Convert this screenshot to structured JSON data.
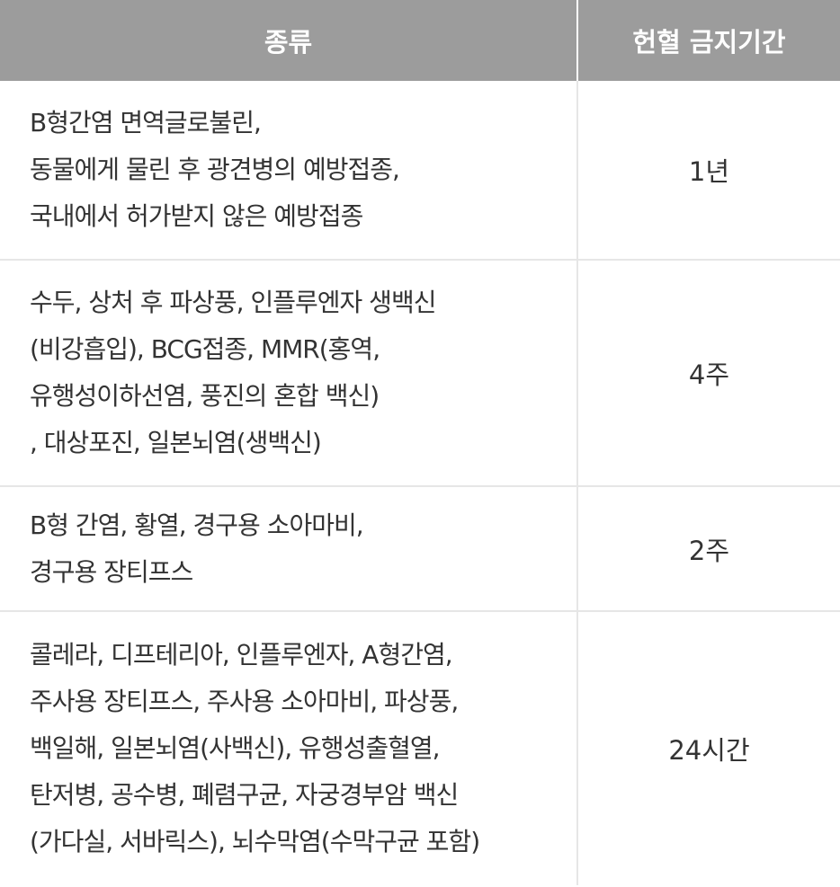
{
  "header": {
    "col_kind": "종류",
    "col_period": "헌혈 금지기간"
  },
  "rows": [
    {
      "lines": [
        "B형간염 면역글로불린,",
        "동물에게 물린 후 광견병의 예방접종,",
        "국내에서 허가받지 않은 예방접종"
      ],
      "period": "1년"
    },
    {
      "lines": [
        "수두, 상처 후 파상풍, 인플루엔자 생백신",
        "(비강흡입), BCG접종, MMR(홍역,",
        "유행성이하선염, 풍진의 혼합 백신)",
        ", 대상포진, 일본뇌염(생백신)"
      ],
      "period": "4주"
    },
    {
      "lines": [
        "B형 간염, 황열, 경구용 소아마비,",
        "경구용 장티프스"
      ],
      "period": "2주"
    },
    {
      "lines": [
        "콜레라, 디프테리아, 인플루엔자, A형간염,",
        "주사용 장티프스, 주사용 소아마비, 파상풍,",
        "백일해, 일본뇌염(사백신), 유행성출혈열,",
        "탄저병, 공수병, 폐렴구균, 자궁경부암 백신",
        "(가다실, 서바릭스), 뇌수막염(수막구균 포함)"
      ],
      "period": "24시간"
    }
  ]
}
